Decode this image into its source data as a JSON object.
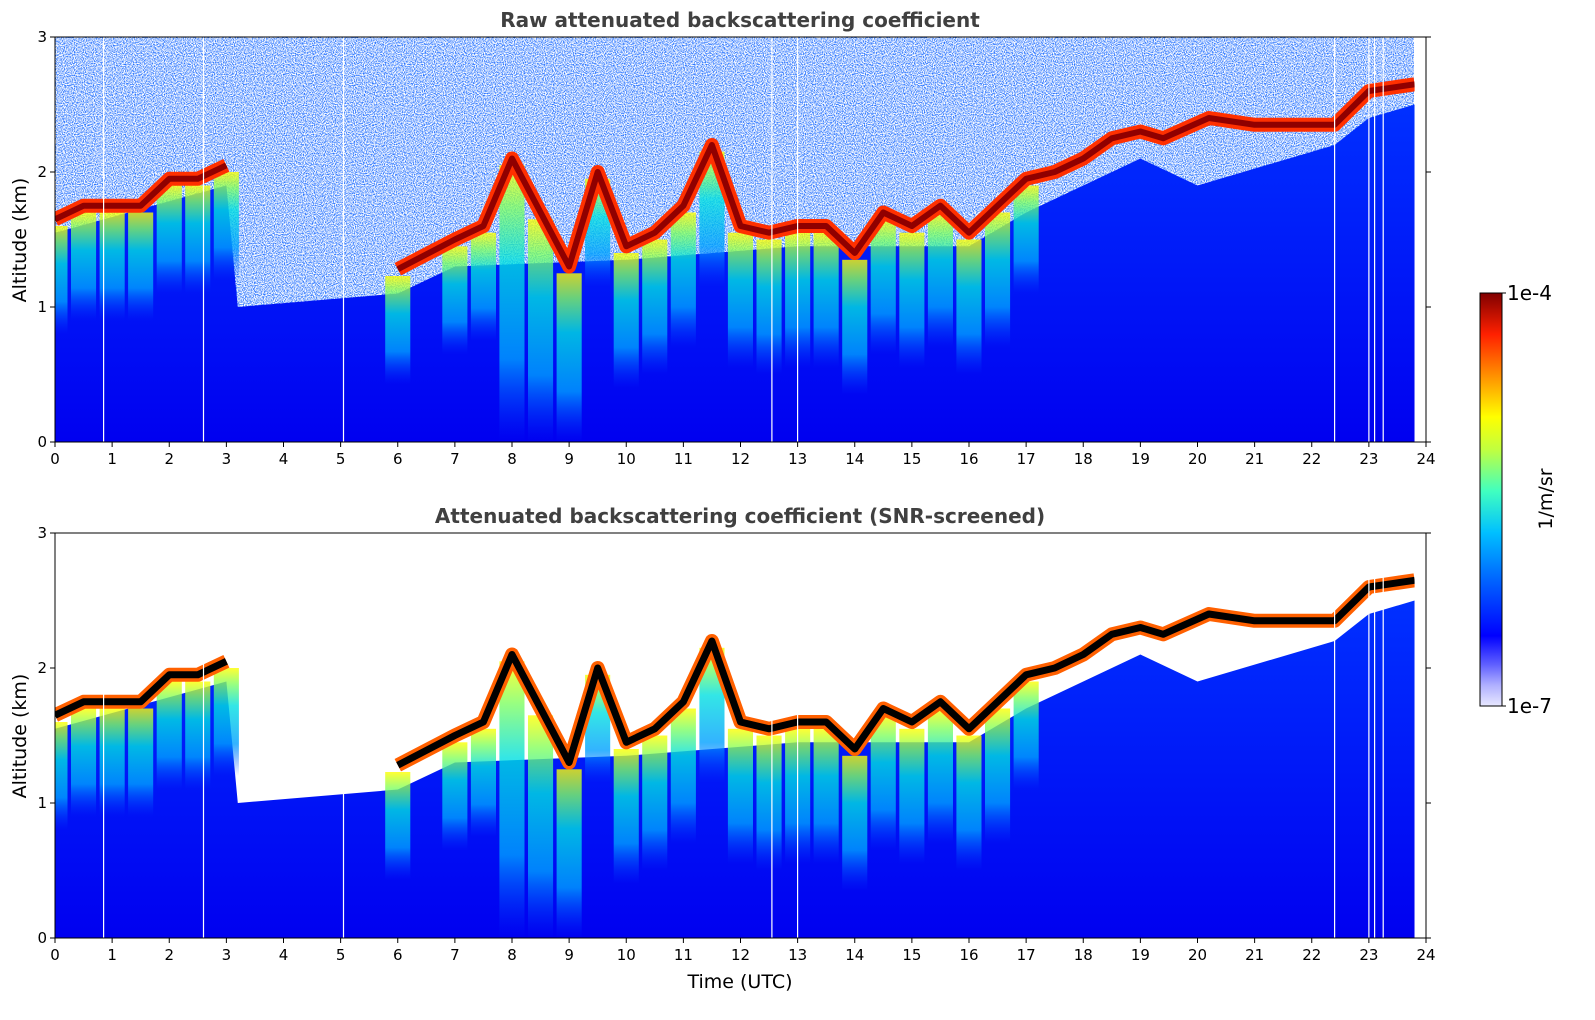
{
  "chart_data": [
    {
      "type": "heatmap",
      "title": "Raw attenuated backscattering coefficient",
      "xlabel": "",
      "ylabel": "Altitude (km)",
      "xlim": [
        0,
        24
      ],
      "ylim": [
        0,
        3
      ],
      "x_ticks": [
        "0",
        "1",
        "2",
        "3",
        "4",
        "5",
        "6",
        "7",
        "8",
        "9",
        "10",
        "11",
        "12",
        "13",
        "14",
        "15",
        "16",
        "17",
        "18",
        "19",
        "20",
        "21",
        "22",
        "23",
        "24"
      ],
      "y_ticks": [
        "0",
        "1",
        "2",
        "3"
      ],
      "cloud_base_km": [
        [
          0.0,
          1.65
        ],
        [
          0.5,
          1.75
        ],
        [
          1.0,
          1.75
        ],
        [
          1.5,
          1.75
        ],
        [
          2.0,
          1.95
        ],
        [
          2.5,
          1.95
        ],
        [
          3.0,
          2.05
        ],
        [
          6.0,
          1.28
        ],
        [
          7.0,
          1.5
        ],
        [
          7.5,
          1.6
        ],
        [
          8.0,
          2.1
        ],
        [
          8.5,
          1.7
        ],
        [
          9.0,
          1.3
        ],
        [
          9.5,
          2.0
        ],
        [
          10.0,
          1.45
        ],
        [
          10.5,
          1.55
        ],
        [
          11.0,
          1.75
        ],
        [
          11.5,
          2.2
        ],
        [
          12.0,
          1.6
        ],
        [
          12.5,
          1.55
        ],
        [
          13.0,
          1.6
        ],
        [
          13.5,
          1.6
        ],
        [
          14.0,
          1.4
        ],
        [
          14.5,
          1.7
        ],
        [
          15.0,
          1.6
        ],
        [
          15.5,
          1.75
        ],
        [
          16.0,
          1.55
        ],
        [
          16.5,
          1.75
        ],
        [
          17.0,
          1.95
        ],
        [
          17.5,
          2.0
        ],
        [
          18.0,
          2.1
        ],
        [
          18.5,
          2.25
        ],
        [
          19.0,
          2.3
        ],
        [
          19.4,
          2.25
        ],
        [
          20.2,
          2.4
        ],
        [
          21.0,
          2.35
        ],
        [
          22.0,
          2.35
        ],
        [
          22.4,
          2.35
        ],
        [
          23.0,
          2.6
        ],
        [
          23.8,
          2.65
        ]
      ]
    },
    {
      "type": "heatmap",
      "title": "Attenuated backscattering coefficient (SNR-screened)",
      "xlabel": "Time (UTC)",
      "ylabel": "Altitude (km)",
      "xlim": [
        0,
        24
      ],
      "ylim": [
        0,
        3
      ],
      "x_ticks": [
        "0",
        "1",
        "2",
        "3",
        "4",
        "5",
        "6",
        "7",
        "8",
        "9",
        "10",
        "11",
        "12",
        "13",
        "14",
        "15",
        "16",
        "17",
        "18",
        "19",
        "20",
        "21",
        "22",
        "23",
        "24"
      ],
      "y_ticks": [
        "0",
        "1",
        "2",
        "3"
      ],
      "cloud_base_km": [
        [
          0.0,
          1.65
        ],
        [
          0.5,
          1.75
        ],
        [
          1.0,
          1.75
        ],
        [
          1.5,
          1.75
        ],
        [
          2.0,
          1.95
        ],
        [
          2.5,
          1.95
        ],
        [
          3.0,
          2.05
        ],
        [
          6.0,
          1.28
        ],
        [
          7.0,
          1.5
        ],
        [
          7.5,
          1.6
        ],
        [
          8.0,
          2.1
        ],
        [
          8.5,
          1.7
        ],
        [
          9.0,
          1.3
        ],
        [
          9.5,
          2.0
        ],
        [
          10.0,
          1.45
        ],
        [
          10.5,
          1.55
        ],
        [
          11.0,
          1.75
        ],
        [
          11.5,
          2.2
        ],
        [
          12.0,
          1.6
        ],
        [
          12.5,
          1.55
        ],
        [
          13.0,
          1.6
        ],
        [
          13.5,
          1.6
        ],
        [
          14.0,
          1.4
        ],
        [
          14.5,
          1.7
        ],
        [
          15.0,
          1.6
        ],
        [
          15.5,
          1.75
        ],
        [
          16.0,
          1.55
        ],
        [
          16.5,
          1.75
        ],
        [
          17.0,
          1.95
        ],
        [
          17.5,
          2.0
        ],
        [
          18.0,
          2.1
        ],
        [
          18.5,
          2.25
        ],
        [
          19.0,
          2.3
        ],
        [
          19.4,
          2.25
        ],
        [
          20.2,
          2.4
        ],
        [
          21.0,
          2.35
        ],
        [
          22.0,
          2.35
        ],
        [
          22.4,
          2.35
        ],
        [
          23.0,
          2.6
        ],
        [
          23.8,
          2.65
        ]
      ]
    }
  ],
  "colorbar": {
    "label": "1/m/sr",
    "max_label": "1e-4",
    "min_label": "1e-7",
    "colors": [
      "#e8e8ff",
      "#b0b0ff",
      "#6060ff",
      "#0000ff",
      "#0060ff",
      "#00c0ff",
      "#40ffc0",
      "#c0ff40",
      "#ffff00",
      "#ff9000",
      "#ff2000",
      "#800000"
    ]
  }
}
